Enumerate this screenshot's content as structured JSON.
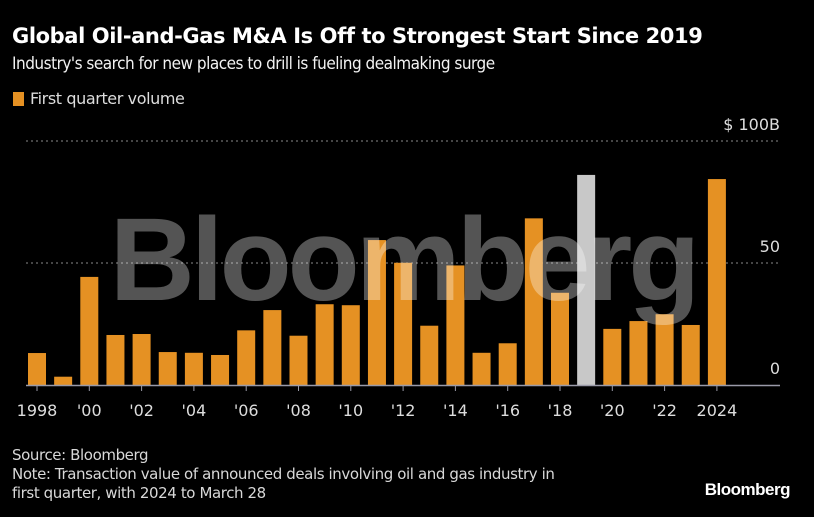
{
  "header": {
    "title": "Global Oil-and-Gas M&A Is Off to Strongest Start Since 2019",
    "subtitle": "Industry's search for new places to drill is fueling dealmaking surge"
  },
  "legend": {
    "label": "First quarter volume",
    "color": "#e59123"
  },
  "watermark": "Bloomberg",
  "footer": {
    "source": "Source: Bloomberg",
    "note_line1": "Note: Transaction value of announced deals involving oil and gas industry in",
    "note_line2": "first quarter, with 2024 to March 28",
    "brand": "Bloomberg"
  },
  "colors": {
    "bar": "#e59123",
    "highlight_bar": "#c8c8c8",
    "gridline": "#8a8a8a",
    "axis": "#9a9aa8",
    "text": "#dddddd"
  },
  "chart_data": {
    "type": "bar",
    "title": "Global Oil-and-Gas M&A Is Off to Strongest Start Since 2019",
    "subtitle": "Industry's search for new places to drill is fueling dealmaking surge",
    "xlabel": "",
    "ylabel": "",
    "ylim": [
      0,
      100
    ],
    "y_ticks": [
      {
        "value": 0,
        "label": "0"
      },
      {
        "value": 50,
        "label": "50"
      },
      {
        "value": 100,
        "label": "$ 100B"
      }
    ],
    "grid": true,
    "legend_position": "top-left",
    "categories": [
      "1998",
      "1999",
      "2000",
      "2001",
      "2002",
      "2003",
      "2004",
      "2005",
      "2006",
      "2007",
      "2008",
      "2009",
      "2010",
      "2011",
      "2012",
      "2013",
      "2014",
      "2015",
      "2016",
      "2017",
      "2018",
      "2019",
      "2020",
      "2021",
      "2022",
      "2023",
      "2024"
    ],
    "x_tick_labels": [
      {
        "year": "1998",
        "label": "1998"
      },
      {
        "year": "2000",
        "label": "'00"
      },
      {
        "year": "2002",
        "label": "'02"
      },
      {
        "year": "2004",
        "label": "'04"
      },
      {
        "year": "2006",
        "label": "'06"
      },
      {
        "year": "2008",
        "label": "'08"
      },
      {
        "year": "2010",
        "label": "'10"
      },
      {
        "year": "2012",
        "label": "'12"
      },
      {
        "year": "2014",
        "label": "'14"
      },
      {
        "year": "2016",
        "label": "'16"
      },
      {
        "year": "2018",
        "label": "'18"
      },
      {
        "year": "2020",
        "label": "'20"
      },
      {
        "year": "2022",
        "label": "'22"
      },
      {
        "year": "2024",
        "label": "2024"
      }
    ],
    "series": [
      {
        "name": "First quarter volume",
        "unit": "$B",
        "values": [
          13.1,
          3.4,
          44.3,
          20.5,
          20.9,
          13.5,
          13.2,
          12.3,
          22.4,
          30.7,
          20.2,
          33.1,
          32.7,
          59.4,
          50.1,
          24.3,
          49.0,
          13.2,
          17.1,
          68.3,
          37.8,
          86.1,
          23.0,
          26.2,
          29.0,
          24.6,
          84.4
        ]
      }
    ],
    "highlighted_category": "2019"
  }
}
